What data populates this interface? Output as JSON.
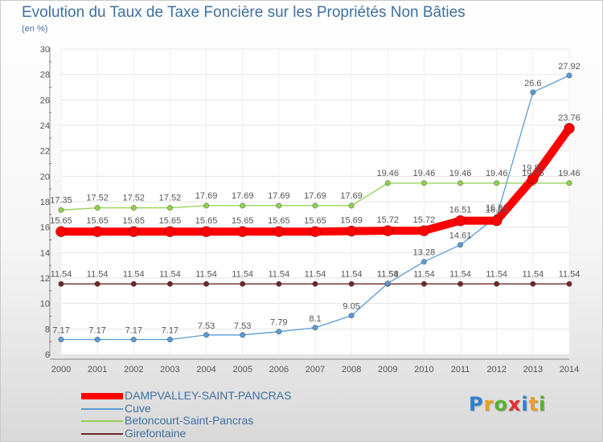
{
  "chart_data": {
    "type": "line",
    "title": "Evolution du Taux de Taxe Foncière sur les Propriétés Non Bâties",
    "ylabel": "(en %)",
    "xlabel": "",
    "ylim": [
      6,
      30
    ],
    "yticks": [
      6,
      8,
      10,
      12,
      14,
      16,
      18,
      20,
      22,
      24,
      26,
      28,
      30
    ],
    "categories": [
      "2000",
      "2001",
      "2002",
      "2003",
      "2004",
      "2005",
      "2006",
      "2007",
      "2008",
      "2009",
      "2010",
      "2011",
      "2012",
      "2013",
      "2014"
    ],
    "series": [
      {
        "name": "Girefontaine",
        "color": "#6b2a2a",
        "values": [
          11.54,
          11.54,
          11.54,
          11.54,
          11.54,
          11.54,
          11.54,
          11.54,
          11.54,
          11.54,
          11.54,
          11.54,
          11.54,
          11.54,
          11.54
        ],
        "labels": [
          "11.54",
          "11.54",
          "11.54",
          "11.54",
          "11.54",
          "11.54",
          "11.54",
          "11.54",
          "11.54",
          "11.54",
          "11.54",
          "11.54",
          "11.54",
          "11.54",
          "11.54"
        ]
      },
      {
        "name": "Betoncourt-Saint-Pancras",
        "color": "#92d050",
        "values": [
          17.35,
          17.52,
          17.52,
          17.52,
          17.69,
          17.69,
          17.69,
          17.69,
          17.69,
          19.46,
          19.46,
          19.46,
          19.46,
          19.46,
          19.46
        ],
        "labels": [
          "17.35",
          "17.52",
          "17.52",
          "17.52",
          "17.69",
          "17.69",
          "17.69",
          "17.69",
          "17.69",
          "19.46",
          "19.46",
          "19.46",
          "19.46",
          "19.46",
          "19.46"
        ]
      },
      {
        "name": "Cuve",
        "color": "#5b9bd5",
        "values": [
          7.17,
          7.17,
          7.17,
          7.17,
          7.53,
          7.53,
          7.79,
          8.1,
          9.05,
          11.58,
          13.28,
          14.61,
          16.81,
          26.6,
          27.92
        ],
        "labels": [
          "7.17",
          "7.17",
          "7.17",
          "7.17",
          "7.53",
          "7.53",
          "7.79",
          "8.1",
          "9.05",
          "11.58",
          "13.28",
          "14.61",
          "16.81",
          "26.6",
          "27.92"
        ]
      },
      {
        "name": "DAMPVALLEY-SAINT-PANCRAS",
        "color": "#ff0000",
        "values": [
          15.65,
          15.65,
          15.65,
          15.65,
          15.65,
          15.65,
          15.65,
          15.65,
          15.69,
          15.72,
          15.72,
          16.51,
          16.51,
          19.81,
          23.76
        ],
        "labels": [
          "15.65",
          "15.65",
          "15.65",
          "15.65",
          "15.65",
          "15.65",
          "15.65",
          "15.65",
          "15.69",
          "15.72",
          "15.72",
          "16.51",
          "16.51",
          "19.81",
          "23.76"
        ]
      }
    ],
    "legend": [
      "DAMPVALLEY-SAINT-PANCRAS",
      "Cuve",
      "Betoncourt-Saint-Pancras",
      "Girefontaine"
    ],
    "legend_position": "bottom-left"
  },
  "logo": {
    "text": "Proxiti",
    "letters": [
      {
        "ch": "P",
        "color": "#2f7fd0"
      },
      {
        "ch": "r",
        "color": "#e8a020"
      },
      {
        "ch": "o",
        "color": "#58b030"
      },
      {
        "ch": "x",
        "color": "#e03030"
      },
      {
        "ch": "i",
        "color": "#2f7fd0"
      },
      {
        "ch": "t",
        "color": "#e8a020"
      },
      {
        "ch": "i",
        "color": "#58b030"
      }
    ]
  }
}
